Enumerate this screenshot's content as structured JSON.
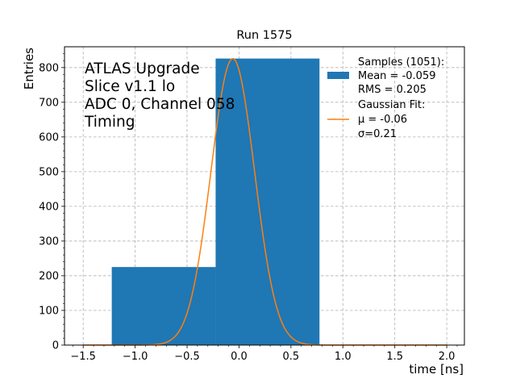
{
  "chart_data": {
    "type": "bar",
    "title": "Run 1575",
    "xlabel": "time [ns]",
    "ylabel": "Entries",
    "xlim": [
      -1.68,
      2.17
    ],
    "ylim": [
      0,
      860
    ],
    "xticks": [
      -1.5,
      -1.0,
      -0.5,
      0.0,
      0.5,
      1.0,
      1.5,
      2.0
    ],
    "xtick_labels": [
      "−1.5",
      "−1.0",
      "−0.5",
      "0.0",
      "0.5",
      "1.0",
      "1.5",
      "2.0"
    ],
    "yticks": [
      0,
      100,
      200,
      300,
      400,
      500,
      600,
      700,
      800
    ],
    "ytick_labels": [
      "0",
      "100",
      "200",
      "300",
      "400",
      "500",
      "600",
      "700",
      "800"
    ],
    "grid": true,
    "bins": [
      {
        "x0": -1.225,
        "x1": -0.225,
        "value": 225
      },
      {
        "x0": -0.225,
        "x1": 0.775,
        "value": 826
      }
    ],
    "fit": {
      "type": "gaussian",
      "mu": -0.06,
      "sigma": 0.21,
      "amplitude": 826,
      "x_range": [
        -1.5,
        2.0
      ]
    },
    "annotation": [
      "ATLAS Upgrade",
      "Slice v1.1 lo",
      "ADC 0, Channel 058",
      "Timing"
    ],
    "legend": {
      "placement": "top-right",
      "samples": [
        "Samples (1051):",
        " Mean = -0.059",
        " RMS = 0.205"
      ],
      "fit": [
        "Gaussian Fit:",
        " μ = -0.06",
        " σ=0.21"
      ]
    },
    "colors": {
      "bars": "#1f77b4",
      "fit": "#ff7f0e",
      "grid": "#b0b0b0"
    }
  }
}
